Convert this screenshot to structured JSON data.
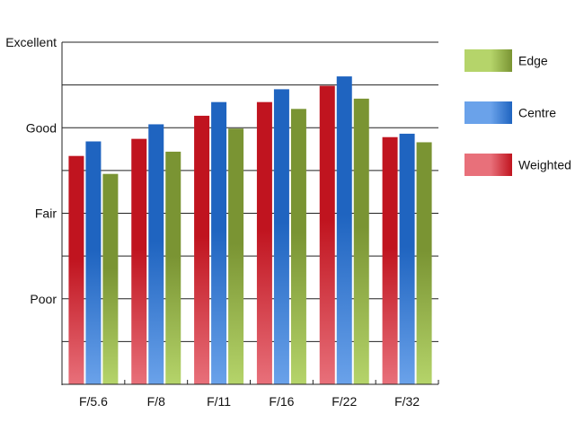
{
  "chart_data": {
    "type": "bar",
    "title": "",
    "xlabel": "",
    "ylabel": "",
    "categories": [
      "F/5.6",
      "F/8",
      "F/11",
      "F/16",
      "F/22",
      "F/32"
    ],
    "series": [
      {
        "name": "Weighted",
        "values": [
          2.67,
          2.87,
          3.14,
          3.3,
          3.49,
          2.89
        ],
        "color": "#c0141f",
        "color_light": "#e8707a"
      },
      {
        "name": "Centre",
        "values": [
          2.84,
          3.04,
          3.3,
          3.45,
          3.6,
          2.93
        ],
        "color": "#1f64c0",
        "color_light": "#6aa2ea"
      },
      {
        "name": "Edge",
        "values": [
          2.46,
          2.72,
          2.99,
          3.22,
          3.34,
          2.83
        ],
        "color": "#7a9433",
        "color_light": "#b5d46a"
      }
    ],
    "legend_order": [
      "Edge",
      "Centre",
      "Weighted"
    ],
    "legend_position": "right",
    "ylim": [
      0,
      4
    ],
    "yticks": [
      {
        "value": 1,
        "label": "Poor"
      },
      {
        "value": 2,
        "label": "Fair"
      },
      {
        "value": 3,
        "label": "Good"
      },
      {
        "value": 4,
        "label": "Excellent"
      }
    ],
    "gridlines": [
      0.5,
      1,
      1.5,
      2,
      2.5,
      3,
      3.5,
      4
    ],
    "grid": true
  }
}
